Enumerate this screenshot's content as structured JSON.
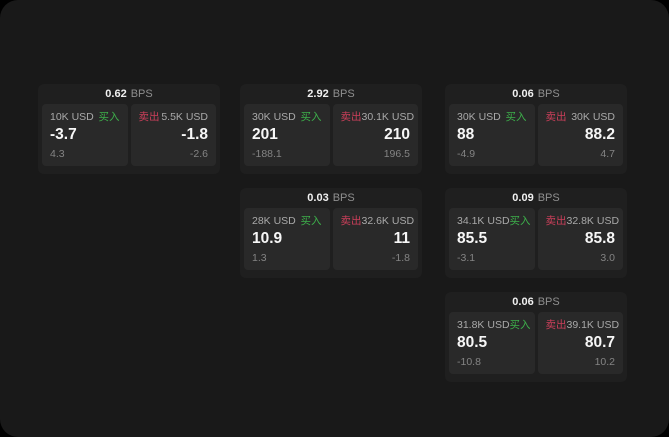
{
  "window": {
    "outer_color": "#000000",
    "surface_color": "#191919"
  },
  "labels": {
    "buy": "买入",
    "sell": "卖出",
    "bps_suffix": "BPS"
  },
  "colors": {
    "buy_green": "#3db04b",
    "sell_red": "#cc3f5a",
    "card_bg": "#1f1f1f",
    "panel_bg": "#292929",
    "price_text": "#f7f7f7",
    "muted_text": "#848484"
  },
  "cards": [
    {
      "bps": "0.62",
      "buy": {
        "amount": "10K USD",
        "price": "-3.7",
        "delta": "4.3"
      },
      "sell": {
        "amount": "5.5K USD",
        "price": "-1.8",
        "delta": "-2.6"
      }
    },
    {
      "bps": "2.92",
      "buy": {
        "amount": "30K USD",
        "price": "201",
        "delta": "-188.1"
      },
      "sell": {
        "amount": "30.1K USD",
        "price": "210",
        "delta": "196.5"
      }
    },
    {
      "bps": "0.06",
      "buy": {
        "amount": "30K USD",
        "price": "88",
        "delta": "-4.9"
      },
      "sell": {
        "amount": "30K USD",
        "price": "88.2",
        "delta": "4.7"
      }
    },
    {
      "bps": "0.03",
      "buy": {
        "amount": "28K USD",
        "price": "10.9",
        "delta": "1.3"
      },
      "sell": {
        "amount": "32.6K USD",
        "price": "11",
        "delta": "-1.8"
      }
    },
    {
      "bps": "0.09",
      "buy": {
        "amount": "34.1K USD",
        "price": "85.5",
        "delta": "-3.1"
      },
      "sell": {
        "amount": "32.8K USD",
        "price": "85.8",
        "delta": "3.0"
      }
    },
    {
      "bps": "0.06",
      "buy": {
        "amount": "31.8K USD",
        "price": "80.5",
        "delta": "-10.8"
      },
      "sell": {
        "amount": "39.1K USD",
        "price": "80.7",
        "delta": "10.2"
      }
    }
  ]
}
